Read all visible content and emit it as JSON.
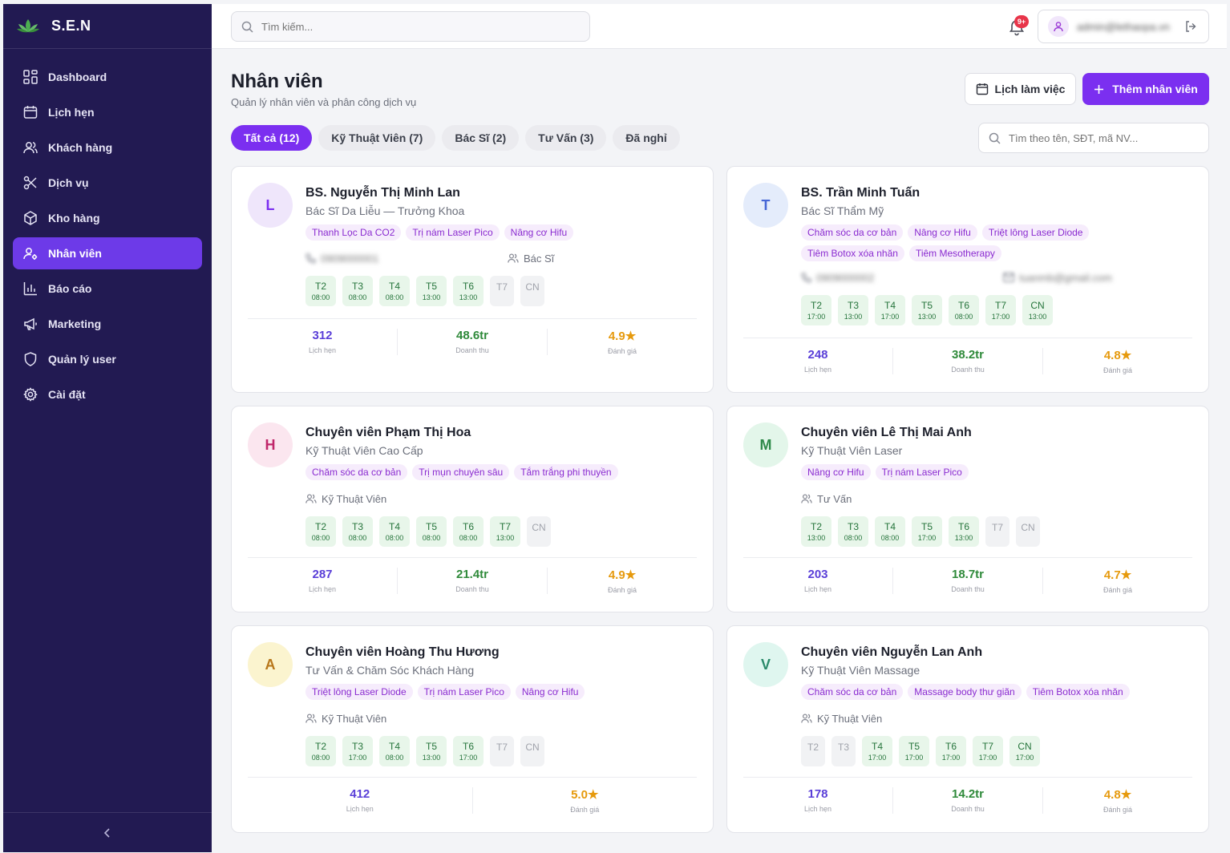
{
  "brand": {
    "name": "S.E.N"
  },
  "sidebar": {
    "items": [
      {
        "label": "Dashboard",
        "icon": "grid-icon"
      },
      {
        "label": "Lịch hẹn",
        "icon": "calendar-icon"
      },
      {
        "label": "Khách hàng",
        "icon": "users-icon"
      },
      {
        "label": "Dịch vụ",
        "icon": "scissors-icon"
      },
      {
        "label": "Kho hàng",
        "icon": "box-icon"
      },
      {
        "label": "Nhân viên",
        "icon": "user-cog-icon",
        "active": true
      },
      {
        "label": "Báo cáo",
        "icon": "bar-chart-icon"
      },
      {
        "label": "Marketing",
        "icon": "megaphone-icon"
      },
      {
        "label": "Quản lý user",
        "icon": "shield-icon"
      },
      {
        "label": "Cài đặt",
        "icon": "gear-icon"
      }
    ]
  },
  "topbar": {
    "search_placeholder": "Tìm kiếm...",
    "notification_badge": "9+",
    "user_name": "admin@lethaopa.vn"
  },
  "header": {
    "title": "Nhân viên",
    "subtitle": "Quản lý nhân viên và phân công dịch vụ",
    "schedule_button": "Lịch làm việc",
    "add_button": "Thêm nhân viên"
  },
  "tabs": [
    {
      "label": "Tất cả (12)",
      "active": true
    },
    {
      "label": "Kỹ Thuật Viên (7)"
    },
    {
      "label": "Bác Sĩ (2)"
    },
    {
      "label": "Tư Vấn (3)"
    },
    {
      "label": "Đã nghỉ"
    }
  ],
  "staff_search_placeholder": "Tìm theo tên, SĐT, mã NV...",
  "colors": {
    "accent": "#7b2ff0",
    "sidebar": "#221a52",
    "active_nav": "#6d3ae8"
  },
  "staff": [
    {
      "initial": "L",
      "avatar_bg": "#efe6fb",
      "avatar_fg": "#7b2ff0",
      "name": "BS. Nguyễn Thị Minh Lan",
      "role": "Bác Sĩ Da Liễu — Trưởng Khoa",
      "tags": [
        "Thanh Lọc Da CO2",
        "Trị nám Laser Pico",
        "Nâng cơ Hifu"
      ],
      "phone": "0909000001",
      "group": "Bác Sĩ",
      "days": [
        {
          "d": "T2",
          "t": "08:00"
        },
        {
          "d": "T3",
          "t": "08:00"
        },
        {
          "d": "T4",
          "t": "08:00"
        },
        {
          "d": "T5",
          "t": "13:00"
        },
        {
          "d": "T6",
          "t": "13:00"
        },
        {
          "d": "T7",
          "t": ""
        },
        {
          "d": "CN",
          "t": ""
        }
      ],
      "stats": [
        {
          "value": "312",
          "label": "Lịch hẹn",
          "color": "purple"
        },
        {
          "value": "48.6tr",
          "label": "Doanh thu",
          "color": "green"
        },
        {
          "value": "4.9★",
          "label": "Đánh giá",
          "color": "orange"
        }
      ]
    },
    {
      "initial": "T",
      "avatar_bg": "#e4ecfb",
      "avatar_fg": "#4767d6",
      "name": "BS. Trần Minh Tuấn",
      "role": "Bác Sĩ Thẩm Mỹ",
      "tags": [
        "Chăm sóc da cơ bản",
        "Nâng cơ Hifu",
        "Triệt lông Laser Diode",
        "Tiêm Botox xóa nhăn",
        "Tiêm Mesotherapy"
      ],
      "phone": "0909000002",
      "email": "tuanmb@gmail.com",
      "days": [
        {
          "d": "T2",
          "t": "17:00"
        },
        {
          "d": "T3",
          "t": "13:00"
        },
        {
          "d": "T4",
          "t": "17:00"
        },
        {
          "d": "T5",
          "t": "13:00"
        },
        {
          "d": "T6",
          "t": "08:00"
        },
        {
          "d": "T7",
          "t": "17:00"
        },
        {
          "d": "CN",
          "t": "13:00"
        }
      ],
      "stats": [
        {
          "value": "248",
          "label": "Lịch hẹn",
          "color": "purple"
        },
        {
          "value": "38.2tr",
          "label": "Doanh thu",
          "color": "green"
        },
        {
          "value": "4.8★",
          "label": "Đánh giá",
          "color": "orange"
        }
      ]
    },
    {
      "initial": "H",
      "avatar_bg": "#fbe6ef",
      "avatar_fg": "#c0266a",
      "name": "Chuyên viên Phạm Thị Hoa",
      "role": "Kỹ Thuật Viên Cao Cấp",
      "tags": [
        "Chăm sóc da cơ bản",
        "Trị mụn chuyên sâu",
        "Tắm trắng phi thuyền"
      ],
      "group": "Kỹ Thuật Viên",
      "days": [
        {
          "d": "T2",
          "t": "08:00"
        },
        {
          "d": "T3",
          "t": "08:00"
        },
        {
          "d": "T4",
          "t": "08:00"
        },
        {
          "d": "T5",
          "t": "08:00"
        },
        {
          "d": "T6",
          "t": "08:00"
        },
        {
          "d": "T7",
          "t": "13:00"
        },
        {
          "d": "CN",
          "t": ""
        }
      ],
      "stats": [
        {
          "value": "287",
          "label": "Lịch hẹn",
          "color": "purple"
        },
        {
          "value": "21.4tr",
          "label": "Doanh thu",
          "color": "green"
        },
        {
          "value": "4.9★",
          "label": "Đánh giá",
          "color": "orange"
        }
      ]
    },
    {
      "initial": "M",
      "avatar_bg": "#e3f6ea",
      "avatar_fg": "#2f8a4a",
      "name": "Chuyên viên Lê Thị Mai Anh",
      "role": "Kỹ Thuật Viên Laser",
      "tags": [
        "Nâng cơ Hifu",
        "Trị nám Laser Pico"
      ],
      "group": "Tư Vấn",
      "days": [
        {
          "d": "T2",
          "t": "13:00"
        },
        {
          "d": "T3",
          "t": "08:00"
        },
        {
          "d": "T4",
          "t": "08:00"
        },
        {
          "d": "T5",
          "t": "17:00"
        },
        {
          "d": "T6",
          "t": "13:00"
        },
        {
          "d": "T7",
          "t": ""
        },
        {
          "d": "CN",
          "t": ""
        }
      ],
      "stats": [
        {
          "value": "203",
          "label": "Lịch hẹn",
          "color": "purple"
        },
        {
          "value": "18.7tr",
          "label": "Doanh thu",
          "color": "green"
        },
        {
          "value": "4.7★",
          "label": "Đánh giá",
          "color": "orange"
        }
      ]
    },
    {
      "initial": "A",
      "avatar_bg": "#fbf4cf",
      "avatar_fg": "#b7761a",
      "name": "Chuyên viên Hoàng Thu Hương",
      "role": "Tư Vấn & Chăm Sóc Khách Hàng",
      "tags": [
        "Triệt lông Laser Diode",
        "Trị nám Laser Pico",
        "Nâng cơ Hifu"
      ],
      "group": "Kỹ Thuật Viên",
      "days": [
        {
          "d": "T2",
          "t": "08:00"
        },
        {
          "d": "T3",
          "t": "17:00"
        },
        {
          "d": "T4",
          "t": "08:00"
        },
        {
          "d": "T5",
          "t": "13:00"
        },
        {
          "d": "T6",
          "t": "17:00"
        },
        {
          "d": "T7",
          "t": ""
        },
        {
          "d": "CN",
          "t": ""
        }
      ],
      "stats": [
        {
          "value": "412",
          "label": "Lịch hẹn",
          "color": "purple"
        },
        {
          "value": "5.0★",
          "label": "Đánh giá",
          "color": "orange"
        }
      ]
    },
    {
      "initial": "V",
      "avatar_bg": "#dff6ef",
      "avatar_fg": "#2a8a6a",
      "name": "Chuyên viên Nguyễn Lan Anh",
      "role": "Kỹ Thuật Viên Massage",
      "tags": [
        "Chăm sóc da cơ bản",
        "Massage body thư giãn",
        "Tiêm Botox xóa nhăn"
      ],
      "group": "Kỹ Thuật Viên",
      "days": [
        {
          "d": "T2",
          "t": ""
        },
        {
          "d": "T3",
          "t": ""
        },
        {
          "d": "T4",
          "t": "17:00"
        },
        {
          "d": "T5",
          "t": "17:00"
        },
        {
          "d": "T6",
          "t": "17:00"
        },
        {
          "d": "T7",
          "t": "17:00"
        },
        {
          "d": "CN",
          "t": "17:00"
        }
      ],
      "stats": [
        {
          "value": "178",
          "label": "Lịch hẹn",
          "color": "purple"
        },
        {
          "value": "14.2tr",
          "label": "Doanh thu",
          "color": "green"
        },
        {
          "value": "4.8★",
          "label": "Đánh giá",
          "color": "orange"
        }
      ]
    }
  ]
}
